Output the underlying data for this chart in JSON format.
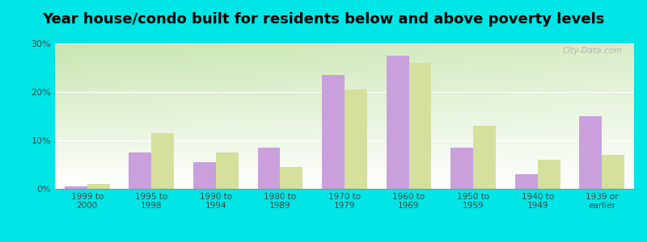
{
  "title": "Year house/condo built for residents below and above poverty levels",
  "categories": [
    "1999 to\n2000",
    "1995 to\n1998",
    "1990 to\n1994",
    "1980 to\n1989",
    "1970 to\n1979",
    "1960 to\n1969",
    "1950 to\n1959",
    "1940 to\n1949",
    "1939 or\nearlier"
  ],
  "below_poverty": [
    0.5,
    7.5,
    5.5,
    8.5,
    23.5,
    27.5,
    8.5,
    3.0,
    15.0
  ],
  "above_poverty": [
    1.0,
    11.5,
    7.5,
    4.5,
    20.5,
    26.0,
    13.0,
    6.0,
    7.0
  ],
  "below_color": "#c9a0dc",
  "above_color": "#d4e09b",
  "ylim": [
    0,
    30
  ],
  "yticks": [
    0,
    10,
    20,
    30
  ],
  "ytick_labels": [
    "0%",
    "10%",
    "20%",
    "30%"
  ],
  "background_color": "#00e5e5",
  "bar_width": 0.35,
  "title_fontsize": 13,
  "watermark": "City-Data.com",
  "grid_color": "#e0e8d0",
  "gradient_top_left": "#c8e6b0",
  "gradient_bottom_right": "#f0f8f0"
}
